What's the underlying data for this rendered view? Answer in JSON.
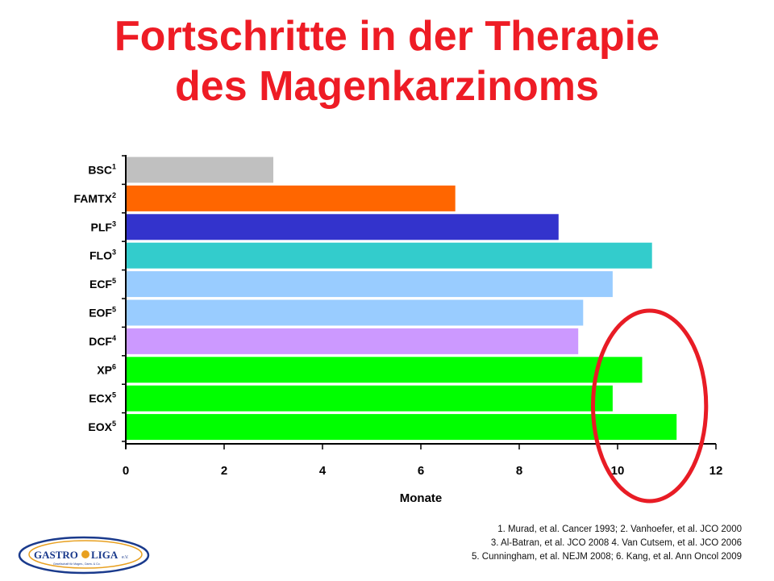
{
  "title_line1": "Fortschritte in der Therapie",
  "title_line2": "des Magenkarzinoms",
  "references": [
    "1. Murad, et al. Cancer 1993; 2. Vanhoefer, et al. JCO 2000",
    "3. Al-Batran, et al. JCO 2008 4. Van Cutsem, et al. JCO 2006",
    "5. Cunningham, et al. NEJM 2008; 6. Kang, et al. Ann Oncol 2009"
  ],
  "logo": {
    "text_main": "GASTRO",
    "text_second": "LIGA",
    "text_suffix": "e.V.",
    "tagline": "Gesellschaft für Magen-, Darm- & Co.",
    "colors": [
      "#1a3a8c",
      "#e8a020"
    ]
  },
  "chart_data": {
    "type": "bar",
    "orientation": "horizontal",
    "categories": [
      "BSC",
      "FAMTX",
      "PLF",
      "FLO",
      "ECF",
      "EOF",
      "DCF",
      "XP",
      "ECX",
      "EOX"
    ],
    "superscripts": [
      "1",
      "2",
      "3",
      "3",
      "5",
      "5",
      "4",
      "6",
      "5",
      "5"
    ],
    "values": [
      3.0,
      6.7,
      8.8,
      10.7,
      9.9,
      9.3,
      9.2,
      10.5,
      9.9,
      11.2
    ],
    "colors": [
      "#c0c0c0",
      "#ff6600",
      "#3333cc",
      "#33cccc",
      "#99ccff",
      "#99ccff",
      "#cc99ff",
      "#00ff00",
      "#00ff00",
      "#00ff00"
    ],
    "xlabel": "Monate",
    "ylabel": "",
    "xlim": [
      0,
      12
    ],
    "xticks": [
      0,
      2,
      4,
      6,
      8,
      10,
      12
    ],
    "grid": false,
    "annotation": {
      "shape": "ellipse",
      "color": "#e81c25",
      "around_x": [
        9.5,
        11.8
      ]
    }
  }
}
